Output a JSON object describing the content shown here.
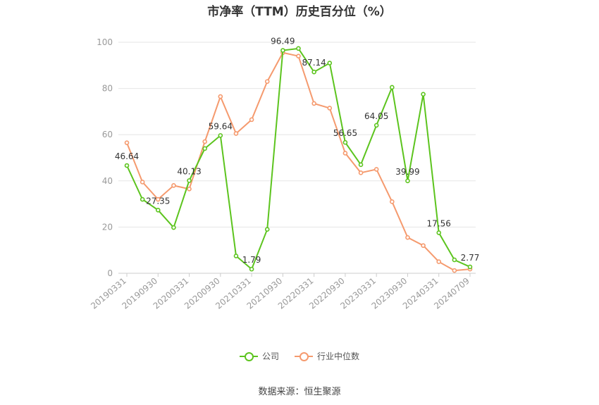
{
  "chart_data": {
    "type": "line",
    "title": "市净率（TTM）历史百分位（%）",
    "ylim": [
      0,
      100
    ],
    "yticks": [
      0,
      20,
      40,
      60,
      80,
      100
    ],
    "x_tick_labels": [
      "20190331",
      "20190930",
      "20200331",
      "20200930",
      "20210331",
      "20210930",
      "20220331",
      "20220930",
      "20230331",
      "20230930",
      "20240331",
      "20240709"
    ],
    "grid": true,
    "legend_position": "bottom",
    "series": [
      {
        "name": "公司",
        "color": "#5cc41e",
        "values": [
          46.64,
          32.0,
          27.35,
          19.8,
          40.13,
          54.0,
          59.64,
          7.5,
          1.79,
          19.0,
          96.49,
          97.3,
          87.14,
          91.0,
          56.65,
          47.0,
          64.05,
          80.5,
          39.99,
          77.5,
          17.56,
          5.8,
          2.77
        ],
        "labels": [
          "46.64",
          "",
          "27.35",
          "",
          "40.13",
          "",
          "59.64",
          "",
          "1.79",
          "",
          "96.49",
          "",
          "87.14",
          "",
          "56.65",
          "",
          "64.05",
          "",
          "39.99",
          "",
          "17.56",
          "",
          "2.77"
        ]
      },
      {
        "name": "行业中位数",
        "color": "#f59a6e",
        "values": [
          56.5,
          39.5,
          32.0,
          38.0,
          36.5,
          57.0,
          76.5,
          60.5,
          66.5,
          83.0,
          95.5,
          94.0,
          73.5,
          71.5,
          52.0,
          43.5,
          45.0,
          31.0,
          15.5,
          12.0,
          5.0,
          1.2,
          1.8
        ]
      }
    ]
  },
  "source_text": "数据来源：恒生聚源"
}
